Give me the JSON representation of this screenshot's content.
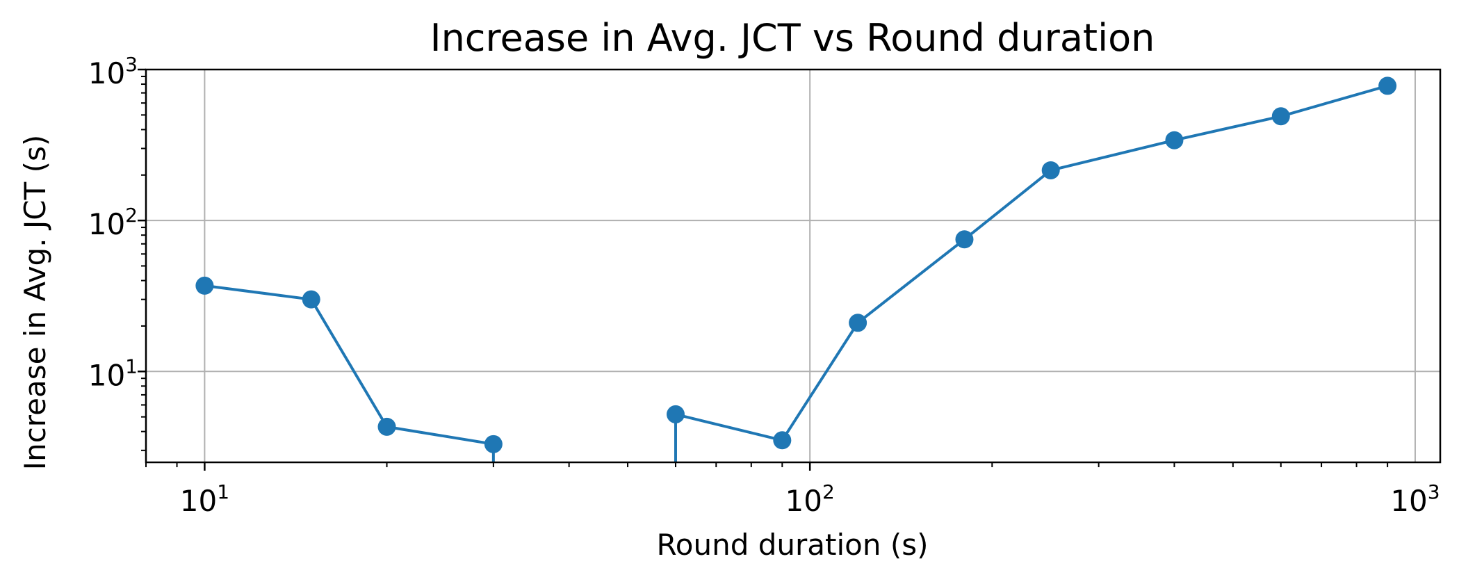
{
  "chart_data": {
    "type": "line",
    "title": "Increase in Avg. JCT vs Round duration",
    "xlabel": "Round duration (s)",
    "ylabel": "Increase in Avg. JCT (s)",
    "x_scale": "log",
    "y_scale": "log",
    "xlim": [
      8,
      1100
    ],
    "ylim": [
      2.5,
      1000
    ],
    "x_ticks": [
      {
        "base": "10",
        "exp": "1",
        "value": 10
      },
      {
        "base": "10",
        "exp": "2",
        "value": 100
      },
      {
        "base": "10",
        "exp": "3",
        "value": 1000
      }
    ],
    "y_ticks": [
      {
        "base": "10",
        "exp": "1",
        "value": 10
      },
      {
        "base": "10",
        "exp": "2",
        "value": 100
      },
      {
        "base": "10",
        "exp": "3",
        "value": 1000
      }
    ],
    "grid": true,
    "color": "#1f77b4",
    "series": [
      {
        "x": [
          10,
          15,
          20,
          30,
          45,
          60,
          90,
          120,
          180,
          250,
          400,
          600,
          900
        ],
        "y": [
          37,
          30,
          4.3,
          3.3,
          null,
          5.2,
          3.5,
          21,
          75,
          215,
          340,
          490,
          780
        ],
        "drop_to_axis": [
          30,
          60
        ]
      }
    ]
  }
}
